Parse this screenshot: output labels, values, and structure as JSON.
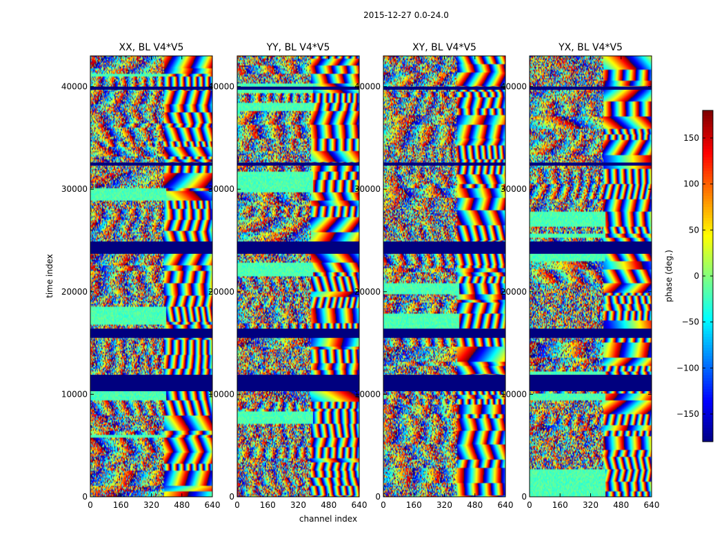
{
  "chart_data": {
    "type": "heatmap",
    "suptitle": "2015-12-27 0.0-24.0",
    "xlabel": "channel index",
    "ylabel": "time index",
    "xlim": [
      0,
      640
    ],
    "ylim": [
      0,
      43000
    ],
    "xticks": [
      0,
      160,
      320,
      480,
      640
    ],
    "yticks": [
      0,
      10000,
      20000,
      30000,
      40000
    ],
    "x_tick_labels": [
      "0",
      "160",
      "320",
      "480",
      "640"
    ],
    "y_tick_labels": [
      "0",
      "10000",
      "20000",
      "30000",
      "40000"
    ],
    "colorbar": {
      "label": "phase (deg.)",
      "colormap": "jet",
      "range": [
        -180,
        180
      ],
      "ticks": [
        -150,
        -100,
        -50,
        0,
        50,
        100,
        150
      ],
      "tick_labels": [
        "−150",
        "−100",
        "−50",
        "0",
        "50",
        "100",
        "150"
      ]
    },
    "panels": [
      {
        "title": "XX, BL V4*V5",
        "id": "xx"
      },
      {
        "title": "YY, BL V4*V5",
        "id": "yy"
      },
      {
        "title": "XY, BL V4*V5",
        "id": "xy"
      },
      {
        "title": "YX, BL V4*V5",
        "id": "yx"
      }
    ],
    "flagged_time_ranges": [
      [
        10300,
        11900
      ],
      [
        15500,
        16400
      ],
      [
        23700,
        24900
      ],
      [
        32300,
        32600
      ],
      [
        39700,
        40000
      ]
    ],
    "flagged_color": "#00007f"
  }
}
